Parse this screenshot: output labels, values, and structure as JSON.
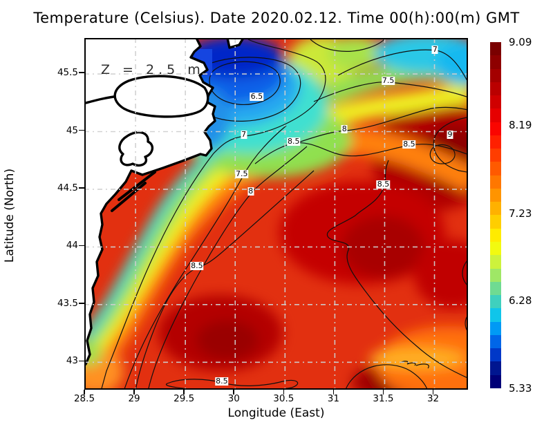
{
  "header": {
    "title": "Temperature (Celsius). Date 2020.02.12. Time 00(h):00(m) GMT"
  },
  "chart_data": {
    "type": "heatmap",
    "title": "Temperature (Celsius). Date 2020.02.12. Time 00(h):00(m) GMT",
    "xlabel": "Longitude (East)",
    "ylabel": "Latitude (North)",
    "depth_annotation": "Z = 2.5 m",
    "grid": true,
    "x_axis": {
      "min": 28.5,
      "max": 32.35,
      "ticks": [
        28.5,
        29,
        29.5,
        30,
        30.5,
        31,
        31.5,
        32
      ],
      "tick_labels": [
        "28.5",
        "29",
        "29.5",
        "30",
        "30.5",
        "31",
        "31.5",
        "32"
      ]
    },
    "y_axis": {
      "min": 42.75,
      "max": 45.8,
      "ticks": [
        43,
        43.5,
        44,
        44.5,
        45,
        45.5
      ],
      "tick_labels": [
        "43",
        "43.5",
        "44",
        "44.5",
        "45",
        "45.5"
      ]
    },
    "colorbar": {
      "min": 5.33,
      "max": 9.09,
      "ticks": [
        9.09,
        8.19,
        7.23,
        6.28,
        5.33
      ],
      "tick_labels": [
        "9.09",
        "8.19",
        "7.23",
        "6.28",
        "5.33"
      ],
      "palette_top_to_bottom": [
        "#7a0000",
        "#8e0000",
        "#a40000",
        "#ba0000",
        "#d00000",
        "#e60000",
        "#fa0500",
        "#ff2000",
        "#ff3d00",
        "#ff5a00",
        "#ff7700",
        "#ff9400",
        "#ffb100",
        "#ffce00",
        "#ffeb00",
        "#f2fa10",
        "#cdf23c",
        "#9fe766",
        "#6fdb92",
        "#3fd0be",
        "#10c5ea",
        "#009af5",
        "#0066e8",
        "#0038c8",
        "#001690",
        "#000078"
      ]
    },
    "contour_levels": [
      6.5,
      7,
      7.5,
      8,
      8.5,
      9
    ],
    "contour_labels": [
      {
        "text": "6.5",
        "lon": 30.23,
        "lat": 45.29
      },
      {
        "text": "7",
        "lon": 30.1,
        "lat": 44.96
      },
      {
        "text": "7.5",
        "lon": 30.08,
        "lat": 44.62
      },
      {
        "text": "8",
        "lon": 30.17,
        "lat": 44.47
      },
      {
        "text": "8.5",
        "lon": 29.63,
        "lat": 43.82
      },
      {
        "text": "8.5",
        "lon": 29.88,
        "lat": 42.82
      },
      {
        "text": "7",
        "lon": 32.02,
        "lat": 45.7
      },
      {
        "text": "7.5",
        "lon": 31.55,
        "lat": 45.43
      },
      {
        "text": "8",
        "lon": 31.11,
        "lat": 45.01
      },
      {
        "text": "8.5",
        "lon": 30.6,
        "lat": 44.9
      },
      {
        "text": "9",
        "lon": 32.17,
        "lat": 44.96
      },
      {
        "text": "8.5",
        "lon": 31.76,
        "lat": 44.88
      },
      {
        "text": "8.5",
        "lon": 31.5,
        "lat": 44.53
      }
    ]
  }
}
